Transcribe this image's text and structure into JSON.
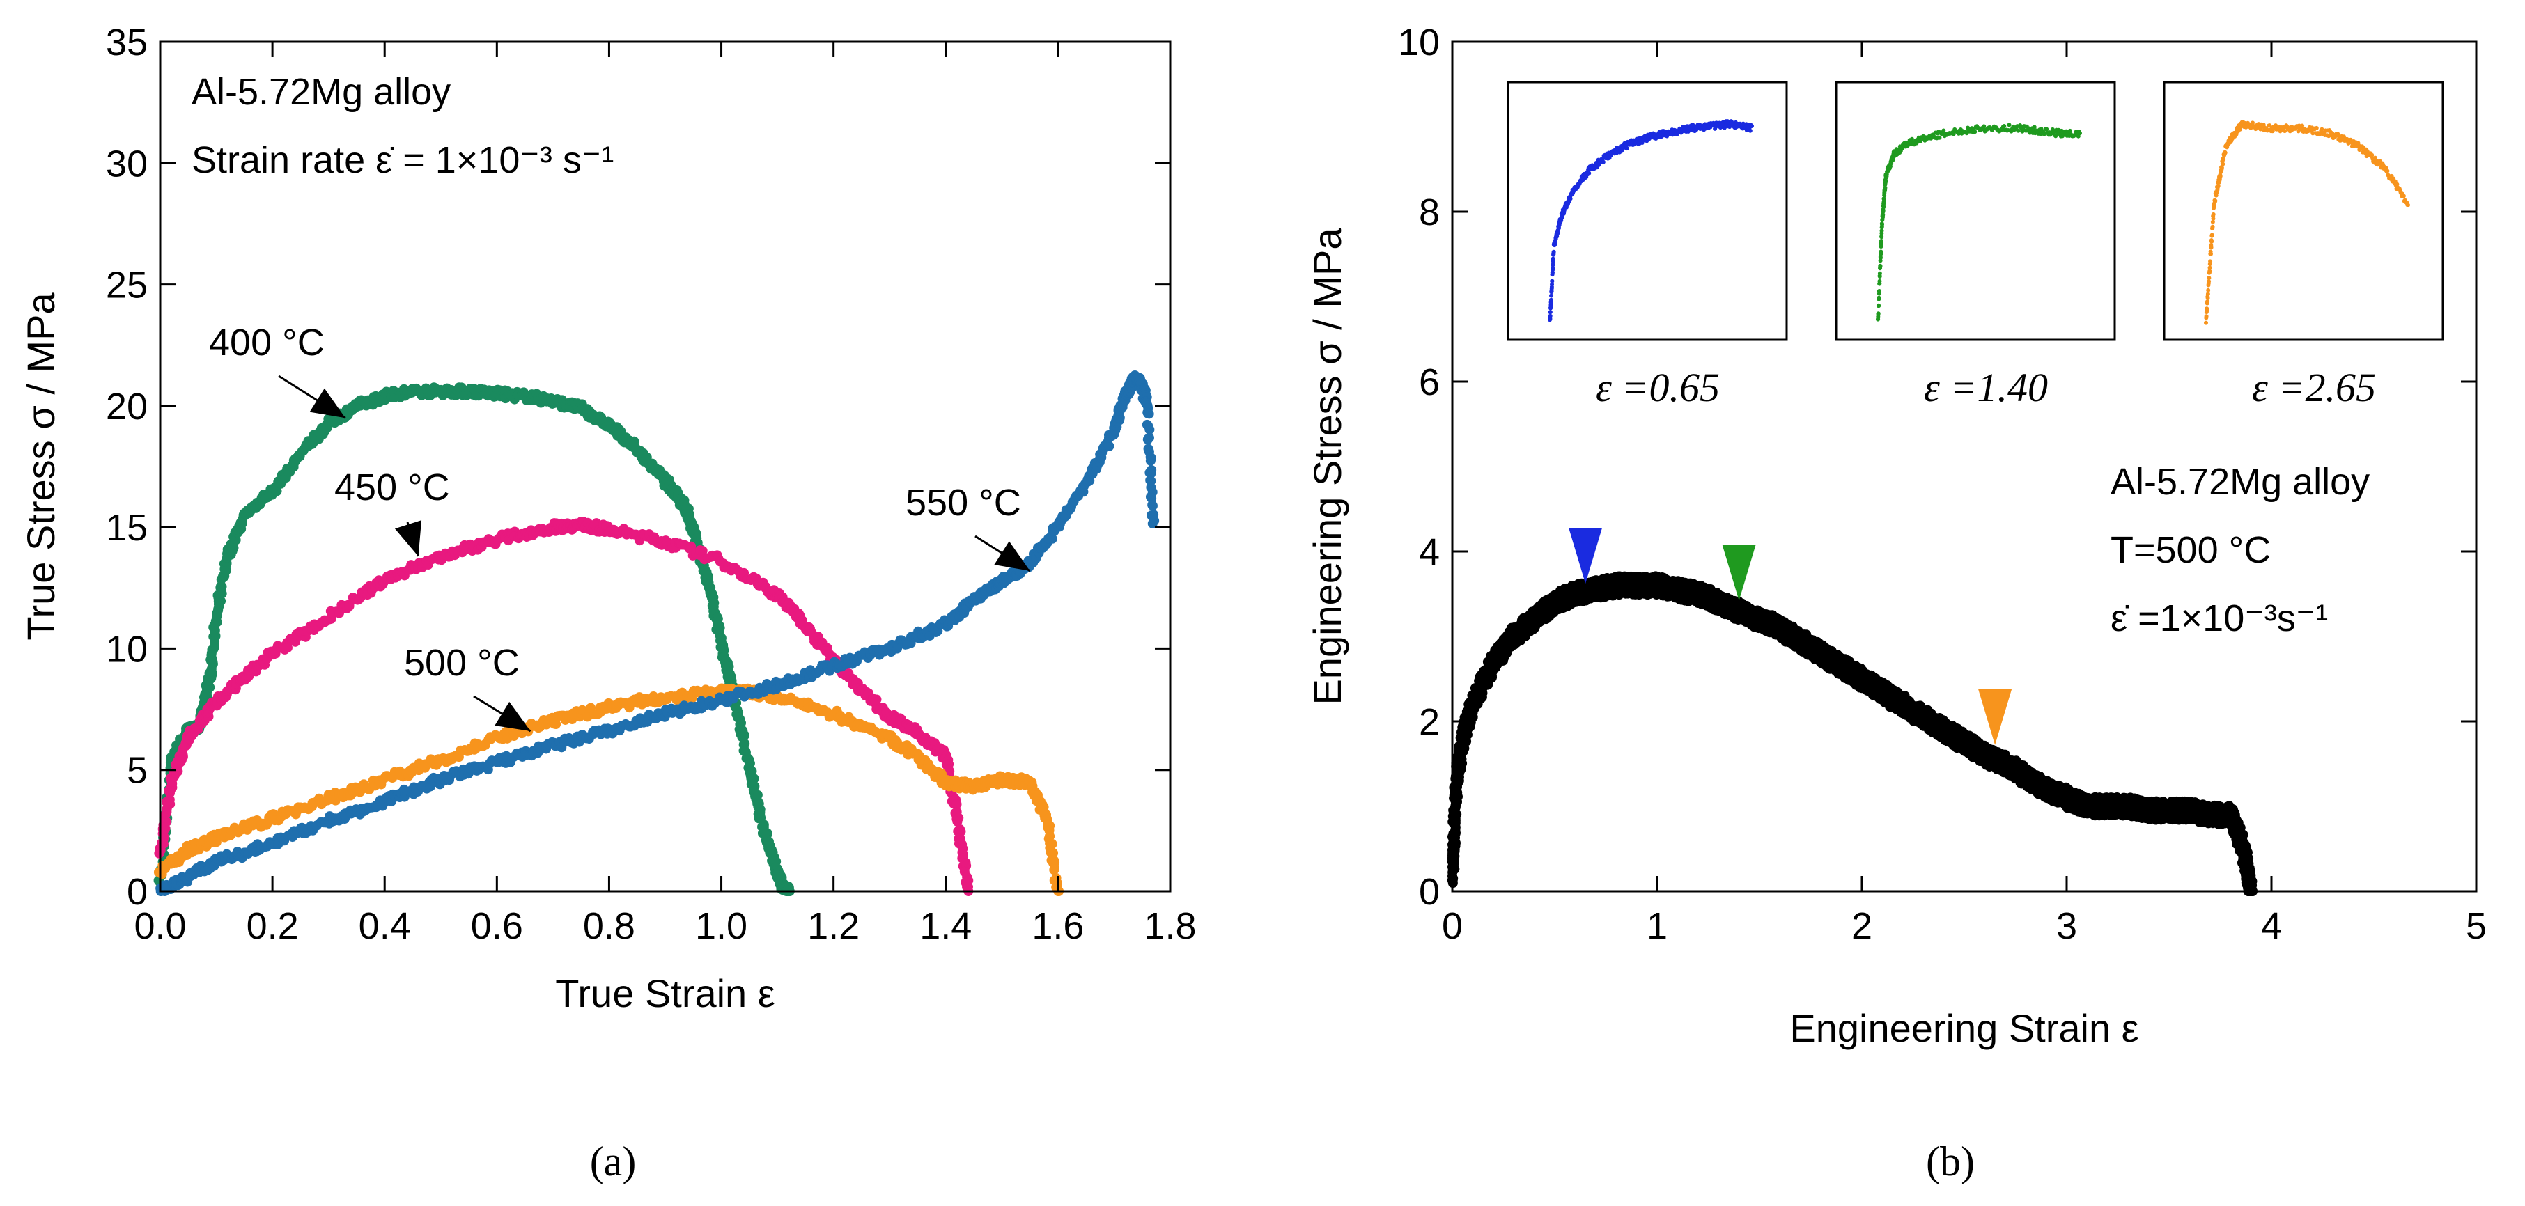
{
  "panel_a_label": "(a)",
  "panel_b_label": "(b)",
  "chart_data": [
    {
      "type": "scatter",
      "xlabel": "True Strain ε",
      "ylabel": "True Stress σ / MPa",
      "xlim": [
        0,
        1.8
      ],
      "ylim": [
        0,
        35
      ],
      "xticks": [
        0.0,
        0.2,
        0.4,
        0.6,
        0.8,
        1.0,
        1.2,
        1.4,
        1.6,
        1.8
      ],
      "xtick_labels": [
        "0.0",
        "0.2",
        "0.4",
        "0.6",
        "0.8",
        "1.0",
        "1.2",
        "1.4",
        "1.6",
        "1.8"
      ],
      "yticks": [
        0,
        5,
        10,
        15,
        20,
        25,
        30,
        35
      ],
      "ytick_labels": [
        "0",
        "5",
        "10",
        "15",
        "20",
        "25",
        "30",
        "35"
      ],
      "annotation_lines": [
        "Al-5.72Mg alloy",
        "Strain rate ε̇ = 1×10⁻³ s⁻¹"
      ],
      "colors": {
        "400": "#1a8a5e",
        "450": "#e8197f",
        "500": "#f7941d",
        "550": "#1f6fae"
      },
      "series": [
        {
          "name": "400 °C",
          "key": "400",
          "label_arrow_target": [
            0.33,
            19.5
          ],
          "x": [
            0.0,
            0.02,
            0.05,
            0.07,
            0.085,
            0.09,
            0.1,
            0.12,
            0.15,
            0.2,
            0.25,
            0.3,
            0.35,
            0.4,
            0.45,
            0.5,
            0.55,
            0.6,
            0.65,
            0.7,
            0.75,
            0.8,
            0.85,
            0.9,
            0.92,
            0.94,
            0.96,
            0.98,
            1.0,
            1.02,
            1.04,
            1.06,
            1.08,
            1.1,
            1.11,
            1.12
          ],
          "y": [
            0.3,
            5.5,
            6.6,
            6.8,
            8.5,
            9.0,
            11.5,
            13.8,
            15.5,
            16.5,
            18.0,
            19.3,
            20.0,
            20.4,
            20.6,
            20.6,
            20.6,
            20.5,
            20.4,
            20.2,
            19.9,
            19.2,
            18.2,
            16.9,
            16.4,
            15.6,
            14.0,
            12.4,
            10.2,
            8.2,
            6.2,
            4.0,
            2.2,
            0.8,
            0.2,
            0.0
          ]
        },
        {
          "name": "450 °C",
          "key": "450",
          "label_arrow_target": [
            0.46,
            13.8
          ],
          "x": [
            0.0,
            0.02,
            0.05,
            0.1,
            0.15,
            0.2,
            0.3,
            0.4,
            0.5,
            0.6,
            0.7,
            0.75,
            0.8,
            0.9,
            1.0,
            1.1,
            1.15,
            1.2,
            1.25,
            1.3,
            1.35,
            1.4,
            1.42,
            1.44
          ],
          "y": [
            1.5,
            4.5,
            6.3,
            7.8,
            8.8,
            9.8,
            11.3,
            12.8,
            13.8,
            14.5,
            15.0,
            15.1,
            14.9,
            14.4,
            13.6,
            12.2,
            11.0,
            9.5,
            8.3,
            7.2,
            6.5,
            5.6,
            3.0,
            0.0
          ]
        },
        {
          "name": "500 °C",
          "key": "500",
          "label_arrow_target": [
            0.66,
            6.6
          ],
          "x": [
            0.0,
            0.05,
            0.1,
            0.2,
            0.3,
            0.4,
            0.5,
            0.6,
            0.7,
            0.8,
            0.9,
            1.0,
            1.05,
            1.1,
            1.2,
            1.3,
            1.35,
            1.4,
            1.45,
            1.5,
            1.55,
            1.58,
            1.6
          ],
          "y": [
            0.8,
            1.7,
            2.2,
            3.0,
            3.8,
            4.6,
            5.4,
            6.3,
            7.0,
            7.6,
            8.0,
            8.2,
            8.2,
            8.0,
            7.3,
            6.3,
            5.5,
            4.5,
            4.3,
            4.6,
            4.5,
            3.0,
            0.0
          ]
        },
        {
          "name": "550 °C",
          "key": "550",
          "label_arrow_target": [
            1.55,
            13.2
          ],
          "x": [
            0.0,
            0.05,
            0.1,
            0.2,
            0.3,
            0.4,
            0.5,
            0.6,
            0.7,
            0.8,
            0.9,
            1.0,
            1.1,
            1.2,
            1.3,
            1.4,
            1.45,
            1.5,
            1.55,
            1.6,
            1.65,
            1.7,
            1.72,
            1.74,
            1.75,
            1.76,
            1.77
          ],
          "y": [
            0.0,
            0.6,
            1.2,
            2.0,
            2.9,
            3.7,
            4.6,
            5.3,
            6.0,
            6.6,
            7.3,
            7.9,
            8.5,
            9.3,
            10.0,
            11.0,
            12.0,
            12.8,
            13.5,
            15.0,
            16.8,
            19.0,
            20.5,
            21.2,
            20.8,
            20.0,
            15.0
          ]
        }
      ]
    },
    {
      "type": "scatter",
      "xlabel": "Engineering Strain ε",
      "ylabel": "Engineering Stress σ / MPa",
      "xlim": [
        0,
        5
      ],
      "ylim": [
        0,
        10
      ],
      "xticks": [
        0,
        1,
        2,
        3,
        4,
        5
      ],
      "xtick_labels": [
        "0",
        "1",
        "2",
        "3",
        "4",
        "5"
      ],
      "yticks": [
        0,
        2,
        4,
        6,
        8,
        10
      ],
      "ytick_labels": [
        "0",
        "2",
        "4",
        "6",
        "8",
        "10"
      ],
      "annotation_lines": [
        "Al-5.72Mg alloy",
        "T=500 °C",
        "ε̇ =1×10⁻³s⁻¹"
      ],
      "series": [
        {
          "name": "",
          "color": "#000000",
          "x": [
            0.0,
            0.02,
            0.05,
            0.1,
            0.2,
            0.3,
            0.4,
            0.5,
            0.6,
            0.7,
            0.8,
            0.9,
            1.0,
            1.1,
            1.2,
            1.3,
            1.4,
            1.5,
            1.6,
            1.7,
            1.8,
            1.9,
            2.0,
            2.1,
            2.2,
            2.3,
            2.4,
            2.5,
            2.6,
            2.7,
            2.8,
            2.9,
            3.0,
            3.1,
            3.2,
            3.3,
            3.4,
            3.5,
            3.6,
            3.7,
            3.8,
            3.85,
            3.88,
            3.9
          ],
          "y": [
            0.2,
            1.3,
            1.8,
            2.2,
            2.7,
            3.0,
            3.2,
            3.4,
            3.5,
            3.55,
            3.6,
            3.6,
            3.6,
            3.55,
            3.5,
            3.4,
            3.3,
            3.2,
            3.1,
            2.95,
            2.8,
            2.65,
            2.5,
            2.35,
            2.2,
            2.05,
            1.9,
            1.75,
            1.6,
            1.5,
            1.35,
            1.2,
            1.1,
            1.0,
            1.0,
            1.0,
            0.95,
            0.95,
            0.95,
            0.9,
            0.9,
            0.6,
            0.3,
            0.0
          ]
        }
      ],
      "markers": [
        {
          "x": 0.65,
          "y": 3.95,
          "color": "#1a2be0"
        },
        {
          "x": 1.4,
          "y": 3.75,
          "color": "#1f9a1f"
        },
        {
          "x": 2.65,
          "y": 2.05,
          "color": "#f7941d"
        }
      ],
      "insets": [
        {
          "label": "ε =0.65",
          "color": "#1a2be0",
          "points": [
            [
              0.0,
              0.0
            ],
            [
              0.02,
              0.35
            ],
            [
              0.06,
              0.5
            ],
            [
              0.12,
              0.62
            ],
            [
              0.2,
              0.71
            ],
            [
              0.3,
              0.78
            ],
            [
              0.4,
              0.83
            ],
            [
              0.5,
              0.86
            ],
            [
              0.6,
              0.88
            ],
            [
              0.7,
              0.9
            ],
            [
              0.8,
              0.91
            ],
            [
              0.9,
              0.92
            ],
            [
              1.0,
              0.9
            ]
          ]
        },
        {
          "label": "ε =1.40",
          "color": "#1f9a1f",
          "points": [
            [
              0.0,
              0.0
            ],
            [
              0.02,
              0.45
            ],
            [
              0.04,
              0.68
            ],
            [
              0.08,
              0.78
            ],
            [
              0.15,
              0.83
            ],
            [
              0.3,
              0.87
            ],
            [
              0.5,
              0.9
            ],
            [
              0.7,
              0.9
            ],
            [
              0.85,
              0.88
            ],
            [
              1.0,
              0.87
            ]
          ]
        },
        {
          "label": "ε =2.65",
          "color": "#f7941d",
          "points": [
            [
              0.0,
              0.0
            ],
            [
              0.04,
              0.55
            ],
            [
              0.1,
              0.82
            ],
            [
              0.18,
              0.92
            ],
            [
              0.3,
              0.9
            ],
            [
              0.45,
              0.9
            ],
            [
              0.6,
              0.88
            ],
            [
              0.75,
              0.82
            ],
            [
              0.88,
              0.72
            ],
            [
              1.0,
              0.55
            ]
          ]
        }
      ]
    }
  ]
}
